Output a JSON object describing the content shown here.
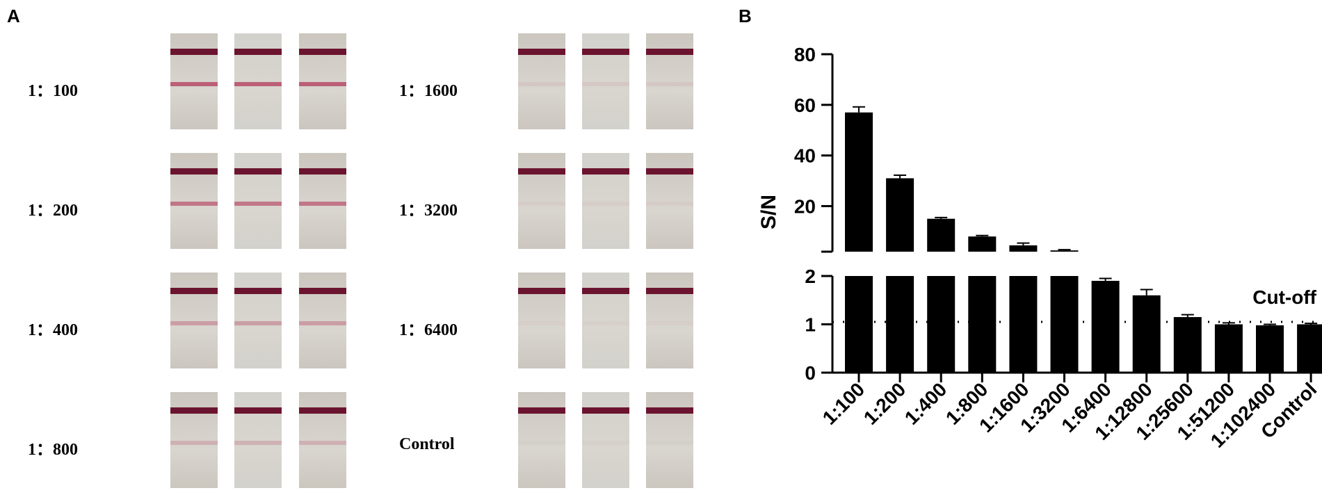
{
  "panel_a": {
    "letter": "A",
    "groups": [
      {
        "label": "1：100",
        "test_line": 0.75
      },
      {
        "label": "1：200",
        "test_line": 0.6
      },
      {
        "label": "1：400",
        "test_line": 0.35
      },
      {
        "label": "1：800",
        "test_line": 0.22
      },
      {
        "label": "1：1600",
        "test_line": 0.08
      },
      {
        "label": "1：3200",
        "test_line": 0.05
      },
      {
        "label": "1：6400",
        "test_line": 0.03
      },
      {
        "label": "Control",
        "test_line": 0.02
      }
    ],
    "colors": {
      "control_line": "#6b1430",
      "test_line": "#b2385a",
      "strip_bg": "#cbc6be"
    }
  },
  "chart_data": {
    "panel_letter": "B",
    "type": "bar",
    "categories": [
      "1:100",
      "1:200",
      "1:400",
      "1:800",
      "1:1600",
      "1:3200",
      "1:6400",
      "1:12800",
      "1:25600",
      "1:51200",
      "1:102400",
      "Control"
    ],
    "values": [
      57,
      31,
      15,
      8,
      4.5,
      2.5,
      1.9,
      1.6,
      1.15,
      1.0,
      0.98,
      1.0
    ],
    "errors": [
      2.2,
      1.2,
      0.5,
      0.4,
      0.9,
      0.3,
      0.05,
      0.12,
      0.05,
      0.03,
      0.02,
      0.02
    ],
    "ylabel": "S/N",
    "axis_break": {
      "lower_ylim": [
        0,
        2
      ],
      "lower_ticks": [
        "0",
        "1",
        "2"
      ],
      "upper_ylim": [
        2,
        80
      ],
      "upper_ticks": [
        "20",
        "40",
        "60",
        "80"
      ]
    },
    "cutoff": {
      "value": 1.05,
      "label": "Cut-off"
    },
    "bar_color": "#000000"
  }
}
